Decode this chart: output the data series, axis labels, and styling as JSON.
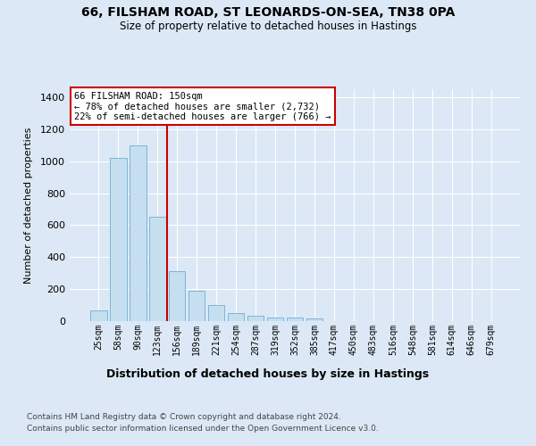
{
  "title_line1": "66, FILSHAM ROAD, ST LEONARDS-ON-SEA, TN38 0PA",
  "title_line2": "Size of property relative to detached houses in Hastings",
  "xlabel": "Distribution of detached houses by size in Hastings",
  "ylabel": "Number of detached properties",
  "footer_line1": "Contains HM Land Registry data © Crown copyright and database right 2024.",
  "footer_line2": "Contains public sector information licensed under the Open Government Licence v3.0.",
  "annotation_line1": "66 FILSHAM ROAD: 150sqm",
  "annotation_line2": "← 78% of detached houses are smaller (2,732)",
  "annotation_line3": "22% of semi-detached houses are larger (766) →",
  "bins": [
    25,
    58,
    90,
    123,
    156,
    189,
    221,
    254,
    287,
    319,
    352,
    385,
    417,
    450,
    483,
    516,
    548,
    581,
    614,
    646,
    679
  ],
  "values": [
    65,
    1020,
    1100,
    650,
    315,
    190,
    100,
    50,
    35,
    25,
    20,
    15,
    0,
    0,
    0,
    0,
    0,
    0,
    0,
    0,
    0
  ],
  "bar_color": "#c5dff0",
  "bar_edge_color": "#7ab5d8",
  "red_line_bin_index": 4,
  "red_line_color": "#cc0000",
  "ylim_max": 1450,
  "yticks": [
    0,
    200,
    400,
    600,
    800,
    1000,
    1200,
    1400
  ],
  "bg_color": "#dce8f5",
  "plot_bg_color": "#dce8f5",
  "annotation_box_edge_color": "#cc0000",
  "grid_color": "#ffffff"
}
